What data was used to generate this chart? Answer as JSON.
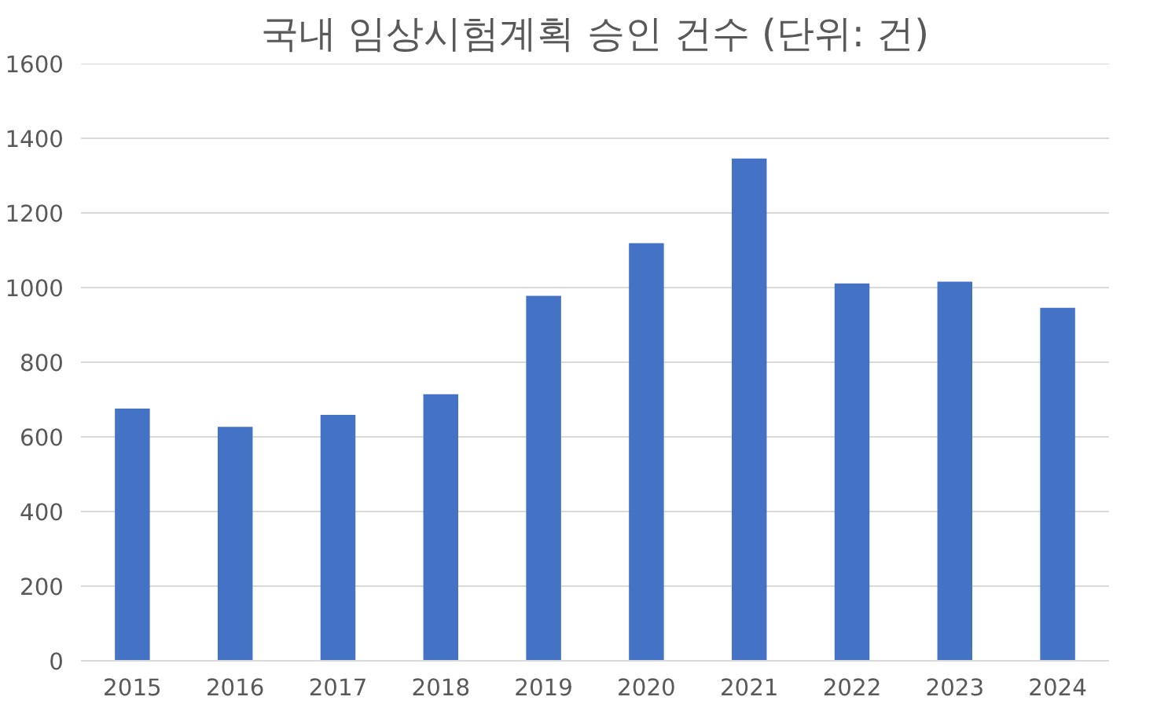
{
  "chart_data": {
    "type": "bar",
    "title": "국내 임상시험계획 승인 건수 (단위: 건)",
    "categories": [
      "2015",
      "2016",
      "2017",
      "2018",
      "2019",
      "2020",
      "2021",
      "2022",
      "2023",
      "2024"
    ],
    "values": [
      676,
      627,
      659,
      714,
      978,
      1119,
      1346,
      1011,
      1016,
      946
    ],
    "color": "#4472c4",
    "ylim": [
      0,
      1600
    ],
    "yticks": [
      0,
      200,
      400,
      600,
      800,
      1000,
      1200,
      1400,
      1600
    ],
    "grid": "y"
  }
}
